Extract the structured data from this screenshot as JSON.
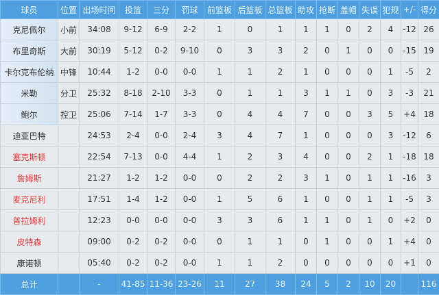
{
  "headers": [
    "球员",
    "位置",
    "出场时间",
    "投篮",
    "三分",
    "罚球",
    "前篮板",
    "后篮板",
    "总篮板",
    "助攻",
    "抢断",
    "盖帽",
    "失误",
    "犯规",
    "+/-",
    "得分"
  ],
  "rows": [
    {
      "name": "克尼佩尔",
      "pos": "小前",
      "starter": true,
      "red": false,
      "stats": [
        "34:08",
        "9-12",
        "6-9",
        "2-2",
        "1",
        "0",
        "1",
        "1",
        "1",
        "0",
        "2",
        "4",
        "-12",
        "26"
      ]
    },
    {
      "name": "布里奇斯",
      "pos": "大前",
      "starter": true,
      "red": false,
      "stats": [
        "30:19",
        "5-12",
        "0-2",
        "9-10",
        "0",
        "3",
        "3",
        "2",
        "0",
        "1",
        "0",
        "0",
        "-15",
        "19"
      ]
    },
    {
      "name": "卡尔克布伦纳",
      "pos": "中锋",
      "starter": true,
      "red": false,
      "stats": [
        "10:44",
        "1-2",
        "0-0",
        "0-0",
        "1",
        "1",
        "2",
        "1",
        "0",
        "0",
        "0",
        "1",
        "-5",
        "2"
      ]
    },
    {
      "name": "米勒",
      "pos": "分卫",
      "starter": true,
      "red": false,
      "stats": [
        "25:32",
        "8-18",
        "2-10",
        "3-3",
        "0",
        "1",
        "1",
        "3",
        "1",
        "1",
        "0",
        "3",
        "-3",
        "21"
      ]
    },
    {
      "name": "鲍尔",
      "pos": "控卫",
      "starter": true,
      "red": false,
      "stats": [
        "25:06",
        "7-14",
        "1-7",
        "3-3",
        "0",
        "4",
        "4",
        "7",
        "0",
        "0",
        "3",
        "5",
        "+4",
        "18"
      ]
    },
    {
      "name": "迪亚巴特",
      "pos": "",
      "starter": false,
      "red": false,
      "stats": [
        "24:53",
        "2-4",
        "0-0",
        "2-4",
        "3",
        "4",
        "7",
        "1",
        "0",
        "0",
        "0",
        "3",
        "-12",
        "6"
      ]
    },
    {
      "name": "塞克斯顿",
      "pos": "",
      "starter": false,
      "red": true,
      "stats": [
        "22:54",
        "7-13",
        "0-0",
        "4-4",
        "1",
        "2",
        "3",
        "4",
        "0",
        "0",
        "2",
        "1",
        "-18",
        "18"
      ]
    },
    {
      "name": "詹姆斯",
      "pos": "",
      "starter": false,
      "red": true,
      "stats": [
        "21:27",
        "1-2",
        "1-2",
        "0-0",
        "0",
        "2",
        "2",
        "3",
        "1",
        "0",
        "1",
        "1",
        "-16",
        "3"
      ]
    },
    {
      "name": "麦克尼利",
      "pos": "",
      "starter": false,
      "red": true,
      "stats": [
        "17:51",
        "1-4",
        "1-2",
        "0-0",
        "1",
        "5",
        "6",
        "1",
        "0",
        "0",
        "1",
        "1",
        "-5",
        "3"
      ]
    },
    {
      "name": "普拉姆利",
      "pos": "",
      "starter": false,
      "red": true,
      "stats": [
        "12:23",
        "0-0",
        "0-0",
        "0-0",
        "3",
        "3",
        "6",
        "1",
        "1",
        "0",
        "1",
        "0",
        "+2",
        "0"
      ]
    },
    {
      "name": "皮特森",
      "pos": "",
      "starter": false,
      "red": true,
      "stats": [
        "09:00",
        "0-2",
        "0-2",
        "0-0",
        "0",
        "1",
        "1",
        "0",
        "1",
        "0",
        "0",
        "1",
        "+4",
        "0"
      ]
    },
    {
      "name": "康诺顿",
      "pos": "",
      "starter": false,
      "red": false,
      "stats": [
        "05:40",
        "0-2",
        "0-2",
        "0-0",
        "1",
        "1",
        "2",
        "0",
        "0",
        "0",
        "0",
        "0",
        "+1",
        "0"
      ]
    }
  ],
  "totals": {
    "label": "总计",
    "pos": "",
    "stats": [
      "-",
      "41-85",
      "11-36",
      "23-26",
      "11",
      "27",
      "38",
      "24",
      "5",
      "2",
      "10",
      "20",
      "",
      "116"
    ]
  },
  "colors": {
    "header": "#4d9fe0",
    "bench_highlight": "#e23a3a"
  }
}
